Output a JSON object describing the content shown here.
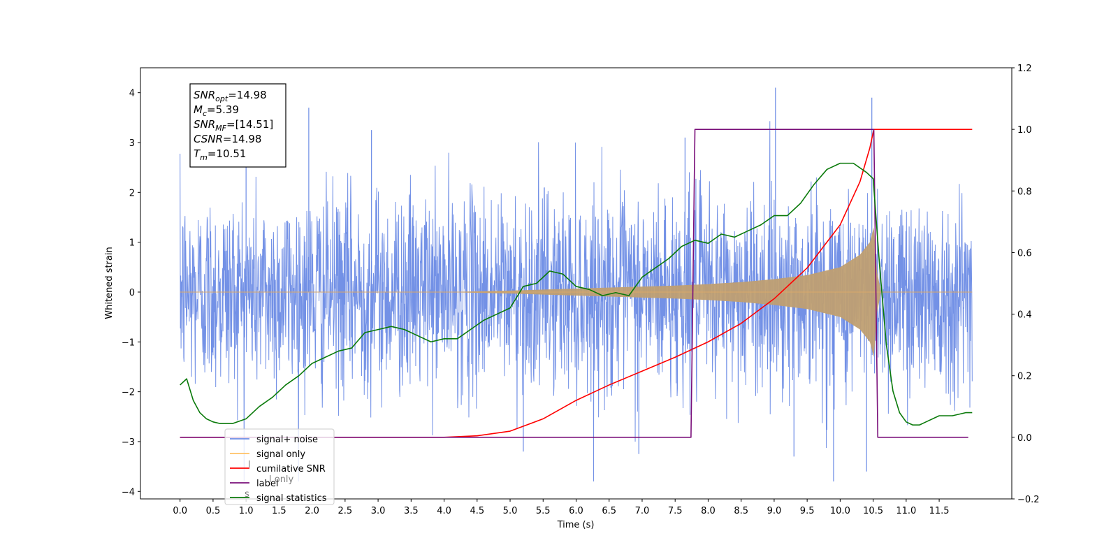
{
  "chart_data": {
    "type": "line",
    "xlabel": "Time (s)",
    "ylabel": "Whitened strain",
    "xlim": [
      -0.6,
      12.6
    ],
    "ylim": [
      -4.15,
      4.5
    ],
    "y2lim": [
      -0.2,
      1.2
    ],
    "xticks": [
      "0.0",
      "0.5",
      "1.0",
      "1.5",
      "2.0",
      "2.5",
      "3.0",
      "3.5",
      "4.0",
      "4.5",
      "5.0",
      "5.5",
      "6.0",
      "6.5",
      "7.0",
      "7.5",
      "8.0",
      "8.5",
      "9.0",
      "9.5",
      "10.0",
      "10.5",
      "11.0",
      "11.5"
    ],
    "yticks": [
      "4",
      "3",
      "2",
      "1",
      "0",
      "−1",
      "−2",
      "−3",
      "−4"
    ],
    "y2ticks": [
      "1.2",
      "1.0",
      "0.8",
      "0.6",
      "0.4",
      "0.2",
      "0.0",
      "−0.2"
    ],
    "grid": false,
    "legend_placement": "lower-left",
    "annotation": [
      {
        "base": "SNR",
        "sub": "opt",
        "value": "=14.98"
      },
      {
        "base": "M",
        "sub": "c",
        "value": "=5.39"
      },
      {
        "base": "SNR",
        "sub": "MF",
        "value": "=[14.51]"
      },
      {
        "base": "CSNR",
        "sub": "",
        "value": "=14.98"
      },
      {
        "base": "T",
        "sub": "m",
        "value": "=10.51"
      }
    ],
    "series": [
      {
        "name": "signal+ noise",
        "color": "#6b8be5",
        "axis": "left",
        "kind": "noise_band",
        "x_range": [
          0.0,
          12.0
        ],
        "noise_sigma": 1.0,
        "extremes_min": -3.8,
        "extremes_max": 4.1
      },
      {
        "name": "signal only",
        "color": "#ffb347",
        "axis": "left",
        "kind": "chirp_envelope",
        "points": [
          [
            0.0,
            0.0
          ],
          [
            4.0,
            0.0
          ],
          [
            5.0,
            0.03
          ],
          [
            6.0,
            0.07
          ],
          [
            7.0,
            0.11
          ],
          [
            7.5,
            0.13
          ],
          [
            8.0,
            0.16
          ],
          [
            8.5,
            0.2
          ],
          [
            9.0,
            0.26
          ],
          [
            9.5,
            0.34
          ],
          [
            10.0,
            0.5
          ],
          [
            10.3,
            0.75
          ],
          [
            10.45,
            1.0
          ],
          [
            10.51,
            1.3
          ],
          [
            10.56,
            0.4
          ],
          [
            10.62,
            0.0
          ],
          [
            12.0,
            0.0
          ]
        ]
      },
      {
        "name": "cumilative SNR",
        "color": "#ff0000",
        "axis": "right",
        "points": [
          [
            0.0,
            0.0
          ],
          [
            4.0,
            0.0
          ],
          [
            4.5,
            0.005
          ],
          [
            5.0,
            0.02
          ],
          [
            5.5,
            0.06
          ],
          [
            6.0,
            0.12
          ],
          [
            6.5,
            0.17
          ],
          [
            7.0,
            0.215
          ],
          [
            7.5,
            0.26
          ],
          [
            8.0,
            0.31
          ],
          [
            8.5,
            0.37
          ],
          [
            9.0,
            0.45
          ],
          [
            9.5,
            0.55
          ],
          [
            10.0,
            0.69
          ],
          [
            10.3,
            0.83
          ],
          [
            10.45,
            0.94
          ],
          [
            10.51,
            1.0
          ],
          [
            12.0,
            1.0
          ]
        ]
      },
      {
        "name": "label",
        "color": "#7a0f7a",
        "axis": "right",
        "points": [
          [
            0.0,
            0.0
          ],
          [
            7.74,
            0.0
          ],
          [
            7.8,
            1.0
          ],
          [
            10.51,
            1.0
          ],
          [
            10.57,
            0.0
          ],
          [
            11.94,
            0.0
          ]
        ]
      },
      {
        "name": "signal statistics",
        "color": "#0a7a0a",
        "axis": "right",
        "points": [
          [
            0.0,
            0.17
          ],
          [
            0.1,
            0.19
          ],
          [
            0.2,
            0.12
          ],
          [
            0.3,
            0.08
          ],
          [
            0.4,
            0.06
          ],
          [
            0.5,
            0.05
          ],
          [
            0.6,
            0.045
          ],
          [
            0.8,
            0.045
          ],
          [
            1.0,
            0.06
          ],
          [
            1.2,
            0.1
          ],
          [
            1.4,
            0.13
          ],
          [
            1.6,
            0.17
          ],
          [
            1.8,
            0.2
          ],
          [
            2.0,
            0.24
          ],
          [
            2.2,
            0.26
          ],
          [
            2.4,
            0.28
          ],
          [
            2.6,
            0.29
          ],
          [
            2.8,
            0.34
          ],
          [
            3.0,
            0.35
          ],
          [
            3.2,
            0.36
          ],
          [
            3.4,
            0.35
          ],
          [
            3.6,
            0.33
          ],
          [
            3.8,
            0.31
          ],
          [
            4.0,
            0.32
          ],
          [
            4.2,
            0.32
          ],
          [
            4.4,
            0.35
          ],
          [
            4.6,
            0.38
          ],
          [
            4.8,
            0.4
          ],
          [
            5.0,
            0.42
          ],
          [
            5.2,
            0.49
          ],
          [
            5.4,
            0.5
          ],
          [
            5.6,
            0.54
          ],
          [
            5.8,
            0.53
          ],
          [
            6.0,
            0.49
          ],
          [
            6.2,
            0.48
          ],
          [
            6.4,
            0.46
          ],
          [
            6.6,
            0.47
          ],
          [
            6.8,
            0.46
          ],
          [
            7.0,
            0.52
          ],
          [
            7.2,
            0.55
          ],
          [
            7.4,
            0.58
          ],
          [
            7.6,
            0.62
          ],
          [
            7.8,
            0.64
          ],
          [
            8.0,
            0.63
          ],
          [
            8.2,
            0.66
          ],
          [
            8.4,
            0.65
          ],
          [
            8.6,
            0.67
          ],
          [
            8.8,
            0.69
          ],
          [
            9.0,
            0.72
          ],
          [
            9.2,
            0.72
          ],
          [
            9.4,
            0.76
          ],
          [
            9.6,
            0.82
          ],
          [
            9.8,
            0.87
          ],
          [
            10.0,
            0.89
          ],
          [
            10.2,
            0.89
          ],
          [
            10.4,
            0.86
          ],
          [
            10.5,
            0.84
          ],
          [
            10.6,
            0.55
          ],
          [
            10.7,
            0.3
          ],
          [
            10.8,
            0.15
          ],
          [
            10.9,
            0.08
          ],
          [
            11.0,
            0.05
          ],
          [
            11.1,
            0.04
          ],
          [
            11.2,
            0.04
          ],
          [
            11.3,
            0.05
          ],
          [
            11.5,
            0.07
          ],
          [
            11.7,
            0.07
          ],
          [
            11.9,
            0.08
          ],
          [
            12.0,
            0.08
          ]
        ]
      }
    ],
    "legend": [
      "signal+ noise",
      "signal only",
      "cumilative SNR",
      "label",
      "signal statistics"
    ]
  },
  "legend_bleed_text": [
    "l",
    "l only",
    "s"
  ]
}
